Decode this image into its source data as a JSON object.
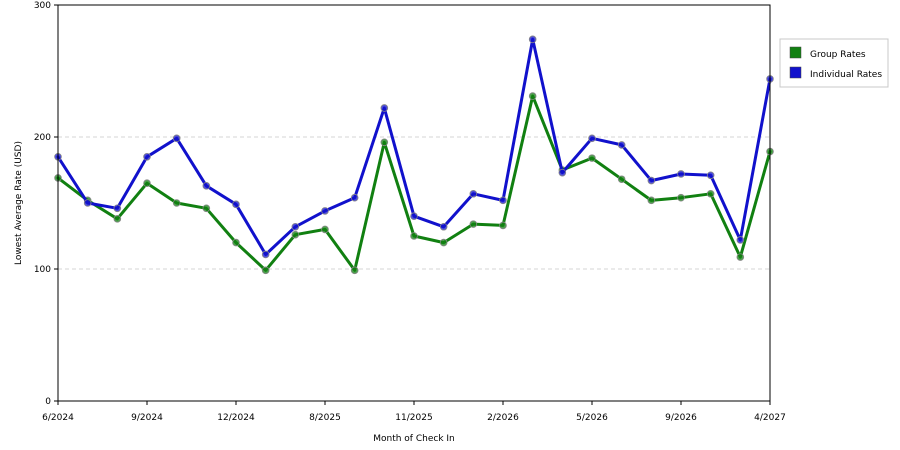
{
  "chart_data": {
    "type": "line",
    "title": "",
    "xlabel": "Month of Check In",
    "ylabel": "Lowest Average Rate (USD)",
    "ylim": [
      0,
      300
    ],
    "y_ticks": [
      0,
      100,
      200,
      300
    ],
    "grid": "horizontal dashed at 100 and 200",
    "legend_position": "top-right, outside plot",
    "x_ticks": [
      {
        "index": 0,
        "label": "6/2024"
      },
      {
        "index": 3,
        "label": "9/2024"
      },
      {
        "index": 6,
        "label": "12/2024"
      },
      {
        "index": 9,
        "label": "8/2025"
      },
      {
        "index": 12,
        "label": "11/2025"
      },
      {
        "index": 15,
        "label": "2/2026"
      },
      {
        "index": 18,
        "label": "5/2026"
      },
      {
        "index": 21,
        "label": "9/2026"
      },
      {
        "index": 24,
        "label": "4/2027"
      }
    ],
    "point_count": 25,
    "series": [
      {
        "name": "Group Rates",
        "color": "#118011",
        "values": [
          169,
          152,
          138,
          165,
          150,
          146,
          120,
          99,
          126,
          130,
          99,
          196,
          125,
          120,
          134,
          133,
          231,
          175,
          184,
          168,
          152,
          154,
          157,
          109,
          189
        ]
      },
      {
        "name": "Individual Rates",
        "color": "#1111cc",
        "values": [
          185,
          150,
          146,
          185,
          199,
          163,
          149,
          111,
          132,
          144,
          154,
          222,
          140,
          132,
          157,
          152,
          274,
          173,
          199,
          194,
          167,
          172,
          171,
          122,
          244
        ]
      }
    ]
  }
}
